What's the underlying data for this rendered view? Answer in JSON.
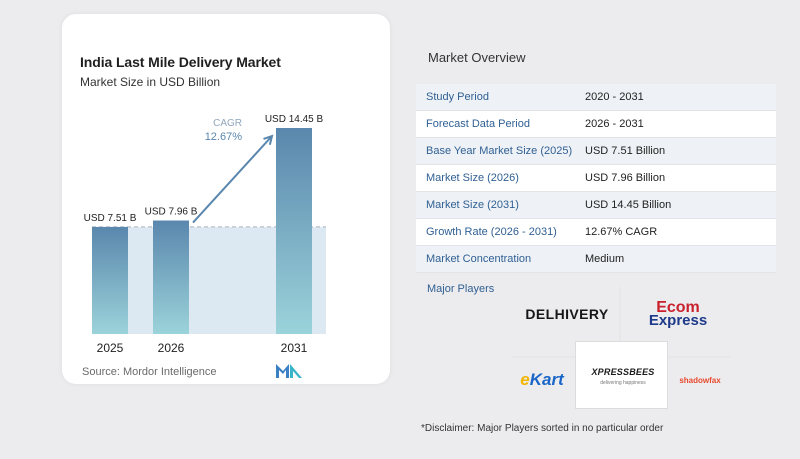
{
  "chart": {
    "title": "India Last Mile Delivery Market",
    "subtitle": "Market Size in USD Billion",
    "source": "Source: Mordor Intelligence",
    "cagr_label": "CAGR",
    "cagr_value": "12.67%"
  },
  "chart_data": {
    "type": "bar",
    "categories": [
      "2025",
      "2026",
      "2031"
    ],
    "values": [
      7.51,
      7.96,
      14.45
    ],
    "data_labels": [
      "USD 7.51 B",
      "USD 7.96 B",
      "USD 14.45 B"
    ],
    "title": "India Last Mile Delivery Market",
    "subtitle": "Market Size in USD Billion",
    "xlabel": "",
    "ylabel": "",
    "ylim": [
      0,
      14.45
    ],
    "grid": false,
    "annotation": {
      "label": "CAGR",
      "value": "12.67%"
    },
    "colors": {
      "bar_top": "#5a87ad",
      "bar_bottom": "#9bd3da",
      "arrow": "#5a87ad",
      "band": "#dce8f2"
    }
  },
  "overview": {
    "title": "Market Overview",
    "rows": [
      {
        "label": "Study Period",
        "value": "2020 - 2031"
      },
      {
        "label": "Forecast Data Period",
        "value": "2026 - 2031"
      },
      {
        "label": "Base Year Market Size (2025)",
        "value": "USD 7.51 Billion"
      },
      {
        "label": "Market Size (2026)",
        "value": "USD 7.96 Billion"
      },
      {
        "label": "Market Size (2031)",
        "value": "USD 14.45 Billion"
      },
      {
        "label": "Growth Rate (2026 - 2031)",
        "value": "12.67% CAGR"
      },
      {
        "label": "Market Concentration",
        "value": "Medium"
      }
    ]
  },
  "players": {
    "label": "Major Players",
    "delhivery": "DELHIVERY",
    "ecom_line1": "Ecom",
    "ecom_line2": "Express",
    "ekart_e": "e",
    "ekart_rest": "Kart",
    "xpress_line1": "XPRESSBEES",
    "xpress_line2": "delivering happiness",
    "shadowfax": "shadowfax"
  },
  "disclaimer": "*Disclaimer: Major Players sorted in no particular order",
  "colors": {
    "label_blue": "#2f5f93",
    "row_stripe": "#eef2f6"
  }
}
